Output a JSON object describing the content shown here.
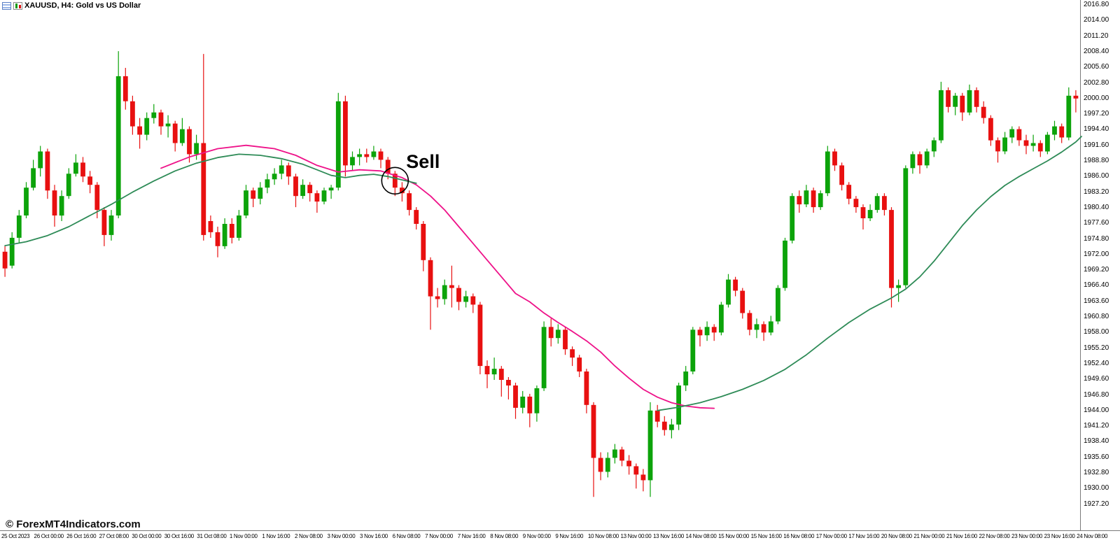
{
  "chart_header": {
    "title": "XAUUSD, H4: Gold vs US Dollar",
    "icons": [
      "table-icon",
      "mini-candles-icon"
    ]
  },
  "watermark": "© ForexMT4Indicators.com",
  "annotation": {
    "label": "Sell",
    "candle_index": 55
  },
  "colors": {
    "bull": "#0CA30A",
    "bear": "#E81010",
    "ma_down": "#EE1289",
    "ma_up": "#2E8B57",
    "axis_line": "#7a7a7a",
    "text": "#000000",
    "circle": "#000000"
  },
  "chart_data": {
    "type": "candlestick",
    "title": "XAUUSD, H4: Gold vs US Dollar",
    "symbol": "XAUUSD",
    "timeframe": "H4",
    "grid": false,
    "legend": false,
    "price_axis": {
      "max": 2016.8,
      "min": 1927.2,
      "step": 2.8,
      "labels": [
        "2016.80",
        "2014.00",
        "2011.20",
        "2008.40",
        "2005.60",
        "2002.80",
        "2000.00",
        "1997.20",
        "1994.40",
        "1991.60",
        "1988.80",
        "1986.00",
        "1983.20",
        "1980.40",
        "1977.60",
        "1974.80",
        "1972.00",
        "1969.20",
        "1966.40",
        "1963.60",
        "1960.80",
        "1958.00",
        "1955.20",
        "1952.40",
        "1949.60",
        "1946.80",
        "1944.00",
        "1941.20",
        "1938.40",
        "1935.60",
        "1932.80",
        "1930.00",
        "1927.20"
      ]
    },
    "time_axis": {
      "labels": [
        "25 Oct 2023",
        "26 Oct 00:00",
        "26 Oct 16:00",
        "27 Oct 08:00",
        "30 Oct 00:00",
        "30 Oct 16:00",
        "31 Oct 08:00",
        "1 Nov 00:00",
        "1 Nov 16:00",
        "2 Nov 08:00",
        "3 Nov 00:00",
        "3 Nov 16:00",
        "6 Nov 08:00",
        "7 Nov 00:00",
        "7 Nov 16:00",
        "8 Nov 08:00",
        "9 Nov 00:00",
        "9 Nov 16:00",
        "10 Nov 08:00",
        "13 Nov 00:00",
        "13 Nov 16:00",
        "14 Nov 08:00",
        "15 Nov 00:00",
        "15 Nov 16:00",
        "16 Nov 08:00",
        "17 Nov 00:00",
        "17 Nov 16:00",
        "20 Nov 08:00",
        "21 Nov 00:00",
        "21 Nov 16:00",
        "22 Nov 08:00",
        "23 Nov 00:00",
        "23 Nov 16:00",
        "24 Nov 08:00"
      ]
    },
    "candles": [
      [
        1972.5,
        1973.5,
        1968.0,
        1969.5
      ],
      [
        1970.0,
        1976.0,
        1969.5,
        1975.0
      ],
      [
        1975.0,
        1980.0,
        1974.0,
        1979.0
      ],
      [
        1979.0,
        1985.0,
        1978.5,
        1984.0
      ],
      [
        1984.0,
        1989.0,
        1983.5,
        1987.5
      ],
      [
        1987.5,
        1991.5,
        1986.0,
        1990.5
      ],
      [
        1990.5,
        1991.0,
        1982.0,
        1983.5
      ],
      [
        1983.5,
        1984.5,
        1977.0,
        1979.0
      ],
      [
        1979.0,
        1983.5,
        1978.0,
        1982.5
      ],
      [
        1982.5,
        1987.5,
        1982.0,
        1986.5
      ],
      [
        1986.5,
        1990.0,
        1986.0,
        1988.5
      ],
      [
        1988.5,
        1989.5,
        1985.0,
        1986.0
      ],
      [
        1986.0,
        1987.0,
        1983.0,
        1984.5
      ],
      [
        1984.5,
        1985.0,
        1978.5,
        1980.0
      ],
      [
        1980.0,
        1980.5,
        1973.5,
        1975.5
      ],
      [
        1975.5,
        1980.0,
        1974.5,
        1979.0
      ],
      [
        1979.0,
        2008.5,
        1978.5,
        2004.0
      ],
      [
        2004.0,
        2005.5,
        1998.0,
        1999.5
      ],
      [
        1999.5,
        2000.5,
        1993.5,
        1995.0
      ],
      [
        1995.0,
        1996.5,
        1991.0,
        1993.5
      ],
      [
        1993.5,
        1997.5,
        1992.5,
        1996.5
      ],
      [
        1996.5,
        1999.0,
        1995.5,
        1997.5
      ],
      [
        1997.5,
        1998.0,
        1993.5,
        1995.0
      ],
      [
        1995.0,
        1997.0,
        1993.0,
        1995.5
      ],
      [
        1995.5,
        1996.0,
        1990.5,
        1992.0
      ],
      [
        1992.0,
        1996.5,
        1991.5,
        1994.5
      ],
      [
        1994.5,
        1995.0,
        1988.5,
        1990.0
      ],
      [
        1990.0,
        1993.5,
        1989.0,
        1992.0
      ],
      [
        1992.0,
        2008.0,
        1974.5,
        1975.5
      ],
      [
        1978.0,
        1979.0,
        1975.0,
        1976.0
      ],
      [
        1976.0,
        1977.0,
        1971.5,
        1973.5
      ],
      [
        1973.5,
        1978.5,
        1973.0,
        1977.5
      ],
      [
        1977.5,
        1978.5,
        1974.0,
        1975.0
      ],
      [
        1975.0,
        1980.0,
        1974.5,
        1979.0
      ],
      [
        1979.0,
        1984.5,
        1978.5,
        1983.5
      ],
      [
        1983.5,
        1984.0,
        1980.5,
        1982.0
      ],
      [
        1982.0,
        1985.0,
        1981.0,
        1984.0
      ],
      [
        1984.0,
        1986.5,
        1983.0,
        1985.5
      ],
      [
        1985.5,
        1987.5,
        1984.5,
        1986.5
      ],
      [
        1986.5,
        1989.0,
        1985.5,
        1988.0
      ],
      [
        1988.0,
        1988.5,
        1984.5,
        1986.0
      ],
      [
        1986.0,
        1986.5,
        1980.5,
        1982.5
      ],
      [
        1982.5,
        1985.5,
        1982.0,
        1984.5
      ],
      [
        1984.5,
        1985.0,
        1981.5,
        1983.0
      ],
      [
        1983.0,
        1983.5,
        1979.5,
        1981.5
      ],
      [
        1981.5,
        1984.0,
        1981.0,
        1983.5
      ],
      [
        1983.5,
        1984.5,
        1982.0,
        1984.0
      ],
      [
        1984.0,
        2001.0,
        1983.5,
        1999.5
      ],
      [
        1999.5,
        2000.5,
        1986.0,
        1988.0
      ],
      [
        1988.0,
        1990.5,
        1987.0,
        1989.5
      ],
      [
        1989.5,
        1991.0,
        1988.0,
        1990.0
      ],
      [
        1990.0,
        1991.0,
        1988.5,
        1989.5
      ],
      [
        1989.5,
        1991.5,
        1989.0,
        1990.5
      ],
      [
        1990.5,
        1991.0,
        1987.5,
        1989.0
      ],
      [
        1989.0,
        1989.5,
        1985.5,
        1986.5
      ],
      [
        1986.5,
        1987.0,
        1982.5,
        1984.0
      ],
      [
        1984.0,
        1985.0,
        1981.5,
        1983.0
      ],
      [
        1983.0,
        1983.5,
        1979.0,
        1980.0
      ],
      [
        1980.0,
        1980.5,
        1976.5,
        1977.5
      ],
      [
        1977.5,
        1978.0,
        1969.0,
        1971.0
      ],
      [
        1971.0,
        1971.5,
        1958.5,
        1964.5
      ],
      [
        1964.5,
        1966.0,
        1962.5,
        1964.0
      ],
      [
        1964.0,
        1967.5,
        1963.0,
        1966.5
      ],
      [
        1966.5,
        1970.0,
        1962.5,
        1966.0
      ],
      [
        1966.0,
        1966.5,
        1962.0,
        1963.5
      ],
      [
        1963.5,
        1965.5,
        1962.5,
        1964.5
      ],
      [
        1964.5,
        1965.0,
        1961.5,
        1963.0
      ],
      [
        1963.0,
        1963.5,
        1950.5,
        1952.0
      ],
      [
        1952.0,
        1953.0,
        1948.0,
        1950.5
      ],
      [
        1950.5,
        1953.5,
        1949.5,
        1951.5
      ],
      [
        1951.5,
        1952.0,
        1946.5,
        1949.5
      ],
      [
        1949.5,
        1950.0,
        1946.0,
        1948.5
      ],
      [
        1948.5,
        1949.0,
        1942.5,
        1944.5
      ],
      [
        1944.5,
        1947.5,
        1943.5,
        1946.5
      ],
      [
        1946.5,
        1947.0,
        1941.0,
        1943.5
      ],
      [
        1943.5,
        1948.5,
        1942.0,
        1948.0
      ],
      [
        1948.0,
        1960.0,
        1947.5,
        1959.0
      ],
      [
        1959.0,
        1960.5,
        1955.5,
        1957.0
      ],
      [
        1957.0,
        1959.5,
        1956.0,
        1958.5
      ],
      [
        1958.5,
        1959.0,
        1954.0,
        1955.0
      ],
      [
        1955.0,
        1955.5,
        1952.0,
        1953.5
      ],
      [
        1953.5,
        1954.0,
        1950.0,
        1951.0
      ],
      [
        1951.0,
        1951.5,
        1943.5,
        1945.0
      ],
      [
        1945.0,
        1945.5,
        1928.5,
        1935.5
      ],
      [
        1935.5,
        1936.5,
        1931.5,
        1933.0
      ],
      [
        1933.0,
        1936.5,
        1932.0,
        1935.5
      ],
      [
        1935.5,
        1938.0,
        1934.5,
        1937.0
      ],
      [
        1937.0,
        1937.5,
        1934.0,
        1935.0
      ],
      [
        1935.0,
        1936.0,
        1932.5,
        1934.0
      ],
      [
        1934.0,
        1934.5,
        1930.0,
        1932.5
      ],
      [
        1932.5,
        1933.5,
        1929.5,
        1931.5
      ],
      [
        1931.5,
        1945.5,
        1928.5,
        1944.0
      ],
      [
        1944.0,
        1945.0,
        1941.0,
        1942.0
      ],
      [
        1942.0,
        1943.0,
        1939.5,
        1940.5
      ],
      [
        1940.5,
        1942.5,
        1939.0,
        1941.5
      ],
      [
        1941.5,
        1949.0,
        1940.5,
        1948.5
      ],
      [
        1948.5,
        1952.0,
        1947.5,
        1951.0
      ],
      [
        1951.0,
        1959.0,
        1950.5,
        1958.5
      ],
      [
        1958.5,
        1959.0,
        1955.5,
        1957.5
      ],
      [
        1957.5,
        1960.0,
        1956.5,
        1959.0
      ],
      [
        1959.0,
        1959.5,
        1956.5,
        1958.0
      ],
      [
        1958.0,
        1963.5,
        1957.5,
        1963.0
      ],
      [
        1963.0,
        1968.5,
        1962.5,
        1967.5
      ],
      [
        1967.5,
        1968.0,
        1964.5,
        1965.5
      ],
      [
        1965.5,
        1966.0,
        1960.5,
        1961.5
      ],
      [
        1961.5,
        1962.0,
        1957.5,
        1958.5
      ],
      [
        1958.5,
        1960.5,
        1957.0,
        1959.5
      ],
      [
        1959.5,
        1960.0,
        1956.5,
        1958.0
      ],
      [
        1958.0,
        1961.0,
        1957.5,
        1960.0
      ],
      [
        1960.0,
        1966.5,
        1959.5,
        1966.0
      ],
      [
        1966.0,
        1975.0,
        1965.5,
        1974.5
      ],
      [
        1974.5,
        1983.0,
        1974.0,
        1982.5
      ],
      [
        1982.5,
        1983.5,
        1979.5,
        1981.0
      ],
      [
        1981.0,
        1984.5,
        1980.5,
        1983.5
      ],
      [
        1983.5,
        1984.0,
        1979.5,
        1980.5
      ],
      [
        1980.5,
        1983.5,
        1980.0,
        1983.0
      ],
      [
        1983.0,
        1991.5,
        1982.5,
        1990.5
      ],
      [
        1990.5,
        1991.0,
        1987.0,
        1988.0
      ],
      [
        1988.0,
        1988.5,
        1983.5,
        1984.5
      ],
      [
        1984.5,
        1985.0,
        1981.0,
        1982.0
      ],
      [
        1982.0,
        1982.5,
        1979.5,
        1980.5
      ],
      [
        1980.5,
        1981.0,
        1976.5,
        1978.5
      ],
      [
        1978.5,
        1981.0,
        1978.0,
        1980.0
      ],
      [
        1980.0,
        1983.0,
        1979.5,
        1982.5
      ],
      [
        1982.5,
        1983.0,
        1979.0,
        1980.0
      ],
      [
        1980.0,
        1980.5,
        1962.5,
        1966.0
      ],
      [
        1966.0,
        1967.5,
        1963.5,
        1966.5
      ],
      [
        1966.5,
        1988.0,
        1966.0,
        1987.5
      ],
      [
        1987.5,
        1990.5,
        1986.5,
        1990.0
      ],
      [
        1990.0,
        1990.5,
        1986.5,
        1988.0
      ],
      [
        1988.0,
        1991.0,
        1987.5,
        1990.5
      ],
      [
        1990.5,
        1993.0,
        1989.5,
        1992.5
      ],
      [
        1992.5,
        2003.0,
        1992.0,
        2001.5
      ],
      [
        2001.5,
        2002.0,
        1997.5,
        1998.5
      ],
      [
        1998.5,
        2001.0,
        1997.0,
        2000.5
      ],
      [
        2000.5,
        2001.0,
        1996.0,
        1997.5
      ],
      [
        1997.5,
        2002.5,
        1997.0,
        2001.5
      ],
      [
        2001.5,
        2002.0,
        1997.5,
        1998.5
      ],
      [
        1998.5,
        1999.5,
        1995.5,
        1996.5
      ],
      [
        1996.5,
        1997.0,
        1991.5,
        1992.5
      ],
      [
        1992.5,
        1993.0,
        1988.5,
        1990.5
      ],
      [
        1990.5,
        1994.0,
        1990.0,
        1993.0
      ],
      [
        1993.0,
        1995.0,
        1992.0,
        1994.5
      ],
      [
        1994.5,
        1995.0,
        1991.5,
        1992.5
      ],
      [
        1992.5,
        1993.5,
        1990.0,
        1991.5
      ],
      [
        1991.5,
        1993.5,
        1990.5,
        1992.0
      ],
      [
        1992.0,
        1992.5,
        1989.5,
        1990.5
      ],
      [
        1990.5,
        1994.0,
        1990.0,
        1993.5
      ],
      [
        1993.5,
        1996.0,
        1992.5,
        1995.0
      ],
      [
        1995.0,
        1995.5,
        1992.0,
        1993.0
      ],
      [
        1993.0,
        2002.0,
        1992.5,
        2000.5
      ],
      [
        2000.5,
        2001.5,
        1997.5,
        2000.0
      ]
    ],
    "ma_lines": [
      {
        "name": "trend-ma-down",
        "color_key": "ma_down",
        "points": [
          [
            22,
            1987.5
          ],
          [
            26,
            1989.5
          ],
          [
            30,
            1991.0
          ],
          [
            34,
            1991.6
          ],
          [
            38,
            1991.0
          ],
          [
            41,
            1989.8
          ],
          [
            44,
            1988.0
          ],
          [
            47,
            1986.8
          ],
          [
            50,
            1987.2
          ],
          [
            53,
            1987.0
          ],
          [
            56,
            1985.8
          ],
          [
            58,
            1984.5
          ],
          [
            60,
            1982.5
          ],
          [
            62,
            1980.0
          ],
          [
            64,
            1977.0
          ],
          [
            66,
            1974.0
          ],
          [
            68,
            1971.0
          ],
          [
            70,
            1968.0
          ],
          [
            72,
            1965.0
          ],
          [
            74,
            1963.5
          ],
          [
            76,
            1961.5
          ],
          [
            78,
            1959.8
          ],
          [
            80,
            1958.2
          ],
          [
            82,
            1956.5
          ],
          [
            84,
            1954.5
          ],
          [
            86,
            1952.0
          ],
          [
            88,
            1949.8
          ],
          [
            90,
            1947.8
          ],
          [
            92,
            1946.4
          ],
          [
            94,
            1945.4
          ],
          [
            96,
            1944.8
          ],
          [
            98,
            1944.5
          ],
          [
            100,
            1944.4
          ]
        ]
      },
      {
        "name": "trend-ma-up-left",
        "color_key": "ma_up",
        "points": [
          [
            0,
            1973.6
          ],
          [
            3,
            1974.3
          ],
          [
            6,
            1975.4
          ],
          [
            9,
            1977.0
          ],
          [
            12,
            1979.0
          ],
          [
            15,
            1981.0
          ],
          [
            18,
            1983.2
          ],
          [
            21,
            1985.2
          ],
          [
            24,
            1987.0
          ],
          [
            27,
            1988.4
          ],
          [
            30,
            1989.4
          ],
          [
            33,
            1990.0
          ],
          [
            36,
            1989.8
          ],
          [
            39,
            1989.2
          ],
          [
            42,
            1988.2
          ],
          [
            44,
            1987.2
          ],
          [
            46,
            1986.2
          ],
          [
            48,
            1985.8
          ],
          [
            50,
            1986.2
          ],
          [
            52,
            1986.4
          ],
          [
            54,
            1986.0
          ],
          [
            56,
            1985.4
          ],
          [
            58,
            1984.8
          ]
        ]
      },
      {
        "name": "trend-ma-up-right",
        "color_key": "ma_up",
        "points": [
          [
            92,
            1944.0
          ],
          [
            95,
            1944.6
          ],
          [
            98,
            1945.4
          ],
          [
            101,
            1946.5
          ],
          [
            104,
            1947.8
          ],
          [
            107,
            1949.4
          ],
          [
            110,
            1951.4
          ],
          [
            113,
            1954.0
          ],
          [
            116,
            1957.0
          ],
          [
            119,
            1959.8
          ],
          [
            122,
            1962.2
          ],
          [
            125,
            1964.2
          ],
          [
            127,
            1965.8
          ],
          [
            129,
            1968.0
          ],
          [
            131,
            1970.8
          ],
          [
            133,
            1974.0
          ],
          [
            135,
            1977.2
          ],
          [
            137,
            1980.0
          ],
          [
            139,
            1982.4
          ],
          [
            141,
            1984.4
          ],
          [
            143,
            1986.0
          ],
          [
            145,
            1987.4
          ],
          [
            147,
            1988.8
          ],
          [
            149,
            1990.4
          ],
          [
            151,
            1992.2
          ],
          [
            151.8,
            1993.2
          ]
        ]
      }
    ]
  }
}
